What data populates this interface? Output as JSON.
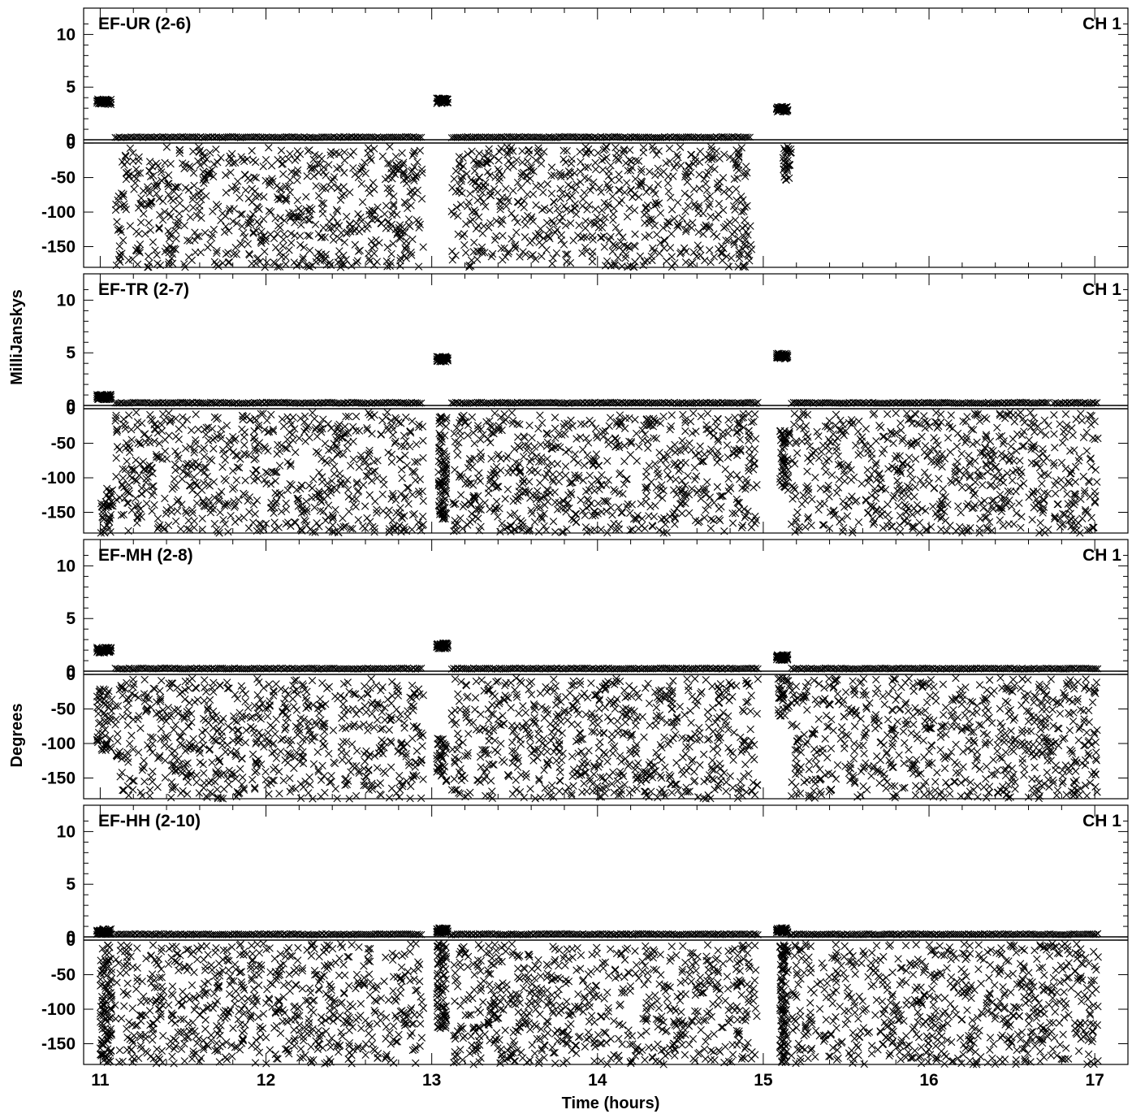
{
  "chart_data": {
    "type": "scatter",
    "marker": "x",
    "marker_color": "#000000",
    "x_axis": {
      "label": "Time (hours)",
      "range": [
        10.9,
        17.2
      ],
      "ticks": [
        11,
        12,
        13,
        14,
        15,
        16,
        17
      ],
      "tick_labels": [
        "11",
        "12",
        "13",
        "14",
        "15",
        "16",
        "17"
      ]
    },
    "left_axis_titles": [
      "MilliJanskys",
      "Degrees"
    ],
    "amplitude_axis": {
      "unit": "MilliJanskys",
      "range": [
        0,
        12.5
      ],
      "ticks": [
        0,
        5,
        10
      ],
      "tick_labels": [
        "0",
        "5",
        "10"
      ]
    },
    "phase_axis": {
      "unit": "Degrees",
      "range": [
        -180,
        0
      ],
      "ticks": [
        0,
        -50,
        -100,
        -150
      ],
      "tick_labels": [
        "0",
        "-50",
        "-100",
        "-150"
      ]
    },
    "channel_label": "CH 1",
    "panels": [
      {
        "name": "EF-UR (2-6)",
        "amplitude_segments": [
          {
            "x_start": 10.98,
            "x_end": 11.07,
            "value": 3.6
          },
          {
            "x_start": 11.09,
            "x_end": 12.95,
            "value": 0.25
          },
          {
            "x_start": 13.03,
            "x_end": 13.1,
            "value": 3.7
          },
          {
            "x_start": 13.12,
            "x_end": 14.93,
            "value": 0.25
          },
          {
            "x_start": 15.08,
            "x_end": 15.15,
            "value": 2.9
          }
        ],
        "phase_segments": [
          {
            "x_start": 11.09,
            "x_end": 12.95,
            "min": -180,
            "max": -5
          },
          {
            "x_start": 13.12,
            "x_end": 14.93,
            "min": -180,
            "max": -5
          },
          {
            "x_start": 15.12,
            "x_end": 15.17,
            "min": -55,
            "max": -5
          }
        ]
      },
      {
        "name": "EF-TR (2-7)",
        "amplitude_segments": [
          {
            "x_start": 10.98,
            "x_end": 11.07,
            "value": 0.8
          },
          {
            "x_start": 11.09,
            "x_end": 12.95,
            "value": 0.25
          },
          {
            "x_start": 13.03,
            "x_end": 13.1,
            "value": 4.4
          },
          {
            "x_start": 13.12,
            "x_end": 14.97,
            "value": 0.25
          },
          {
            "x_start": 15.08,
            "x_end": 15.15,
            "value": 4.7
          },
          {
            "x_start": 15.17,
            "x_end": 16.72,
            "value": 0.25
          },
          {
            "x_start": 16.75,
            "x_end": 17.02,
            "value": 0.25
          }
        ],
        "phase_segments": [
          {
            "x_start": 11.0,
            "x_end": 11.08,
            "min": -180,
            "max": -115
          },
          {
            "x_start": 11.09,
            "x_end": 12.95,
            "min": -180,
            "max": -5
          },
          {
            "x_start": 13.04,
            "x_end": 13.09,
            "min": -160,
            "max": -10
          },
          {
            "x_start": 13.12,
            "x_end": 14.97,
            "min": -180,
            "max": -5
          },
          {
            "x_start": 15.1,
            "x_end": 15.16,
            "min": -120,
            "max": -30
          },
          {
            "x_start": 15.17,
            "x_end": 16.72,
            "min": -180,
            "max": -5
          },
          {
            "x_start": 16.75,
            "x_end": 17.02,
            "min": -180,
            "max": -5
          }
        ]
      },
      {
        "name": "EF-MH (2-8)",
        "amplitude_segments": [
          {
            "x_start": 10.98,
            "x_end": 11.07,
            "value": 2.0
          },
          {
            "x_start": 11.09,
            "x_end": 12.95,
            "value": 0.25
          },
          {
            "x_start": 13.03,
            "x_end": 13.1,
            "value": 2.4
          },
          {
            "x_start": 13.12,
            "x_end": 14.97,
            "value": 0.25
          },
          {
            "x_start": 15.08,
            "x_end": 15.15,
            "value": 1.3
          },
          {
            "x_start": 15.17,
            "x_end": 17.02,
            "value": 0.25
          }
        ],
        "phase_segments": [
          {
            "x_start": 10.98,
            "x_end": 11.07,
            "min": -110,
            "max": -20
          },
          {
            "x_start": 11.09,
            "x_end": 12.95,
            "min": -180,
            "max": -5
          },
          {
            "x_start": 13.03,
            "x_end": 13.09,
            "min": -155,
            "max": -90
          },
          {
            "x_start": 13.12,
            "x_end": 14.97,
            "min": -180,
            "max": -5
          },
          {
            "x_start": 15.09,
            "x_end": 15.16,
            "min": -60,
            "max": -5
          },
          {
            "x_start": 15.17,
            "x_end": 17.02,
            "min": -180,
            "max": -5
          }
        ]
      },
      {
        "name": "EF-HH (2-10)",
        "amplitude_segments": [
          {
            "x_start": 10.98,
            "x_end": 11.07,
            "value": 0.5
          },
          {
            "x_start": 11.09,
            "x_end": 12.95,
            "value": 0.25
          },
          {
            "x_start": 13.03,
            "x_end": 13.1,
            "value": 0.6
          },
          {
            "x_start": 13.12,
            "x_end": 14.97,
            "value": 0.25
          },
          {
            "x_start": 15.08,
            "x_end": 15.15,
            "value": 0.6
          },
          {
            "x_start": 15.17,
            "x_end": 17.02,
            "value": 0.25
          }
        ],
        "phase_segments": [
          {
            "x_start": 11.0,
            "x_end": 11.07,
            "min": -180,
            "max": -5
          },
          {
            "x_start": 11.09,
            "x_end": 12.95,
            "min": -180,
            "max": -5
          },
          {
            "x_start": 13.03,
            "x_end": 13.09,
            "min": -130,
            "max": -5
          },
          {
            "x_start": 13.12,
            "x_end": 14.97,
            "min": -180,
            "max": -5
          },
          {
            "x_start": 15.1,
            "x_end": 15.15,
            "min": -180,
            "max": -5
          },
          {
            "x_start": 15.17,
            "x_end": 17.02,
            "min": -180,
            "max": -5
          }
        ]
      }
    ]
  }
}
